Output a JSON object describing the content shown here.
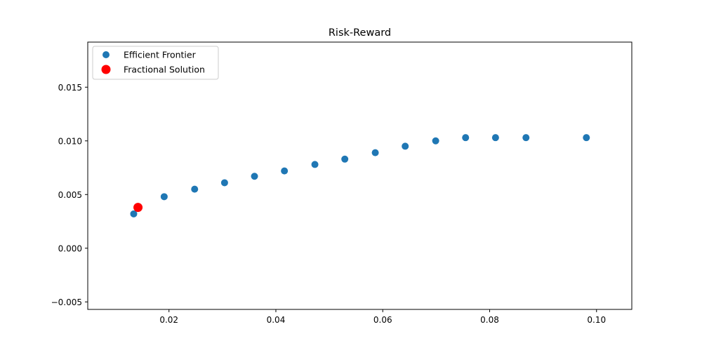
{
  "chart_data": {
    "type": "scatter",
    "title": "Risk-Reward",
    "xlabel": "",
    "ylabel": "",
    "xlim": [
      0.0048,
      0.1066
    ],
    "ylim": [
      -0.0057,
      0.0192
    ],
    "xticks": [
      0.02,
      0.04,
      0.06,
      0.08,
      0.1
    ],
    "xtick_labels": [
      "0.02",
      "0.04",
      "0.06",
      "0.08",
      "0.10"
    ],
    "yticks": [
      -0.005,
      0.0,
      0.005,
      0.01,
      0.015
    ],
    "ytick_labels": [
      "−0.005",
      "0.000",
      "0.005",
      "0.010",
      "0.015"
    ],
    "grid": false,
    "legend_position": "upper-left",
    "series": [
      {
        "name": "Efficient Frontier",
        "color": "#1f77b4",
        "marker": "circle",
        "x": [
          0.0134,
          0.0191,
          0.0248,
          0.0304,
          0.036,
          0.0416,
          0.0473,
          0.0529,
          0.0586,
          0.0642,
          0.0699,
          0.0755,
          0.0811,
          0.0868,
          0.0981
        ],
        "y": [
          0.0032,
          0.0048,
          0.0055,
          0.0061,
          0.0067,
          0.0072,
          0.0078,
          0.0083,
          0.0089,
          0.0095,
          0.01,
          0.0103,
          0.0103,
          0.0103,
          0.0103
        ]
      },
      {
        "name": "Fractional Solution",
        "color": "#ff0000",
        "marker": "circle-large",
        "x": [
          0.0142
        ],
        "y": [
          0.0038
        ]
      }
    ]
  }
}
